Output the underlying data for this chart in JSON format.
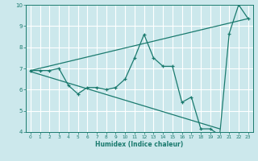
{
  "xlabel": "Humidex (Indice chaleur)",
  "xlim": [
    -0.5,
    23.5
  ],
  "ylim": [
    4,
    10
  ],
  "yticks": [
    4,
    5,
    6,
    7,
    8,
    9,
    10
  ],
  "xticks": [
    0,
    1,
    2,
    3,
    4,
    5,
    6,
    7,
    8,
    9,
    10,
    11,
    12,
    13,
    14,
    15,
    16,
    17,
    18,
    19,
    20,
    21,
    22,
    23
  ],
  "bg_color": "#cce8ec",
  "grid_color": "#ffffff",
  "line_color": "#1a7a6e",
  "main_x": [
    0,
    1,
    2,
    3,
    4,
    5,
    6,
    7,
    8,
    9,
    10,
    11,
    12,
    13,
    14,
    15,
    16,
    17,
    18,
    19,
    20,
    21,
    22,
    23
  ],
  "main_y": [
    6.9,
    6.9,
    6.9,
    7.0,
    6.2,
    5.8,
    6.1,
    6.1,
    6.0,
    6.1,
    6.5,
    7.5,
    8.6,
    7.5,
    7.1,
    7.1,
    5.4,
    5.65,
    4.15,
    4.15,
    3.85,
    8.65,
    10.0,
    9.35
  ],
  "trend1_x": [
    0,
    23
  ],
  "trend1_y": [
    6.9,
    9.35
  ],
  "trend2_x": [
    0,
    20
  ],
  "trend2_y": [
    6.85,
    4.15
  ]
}
